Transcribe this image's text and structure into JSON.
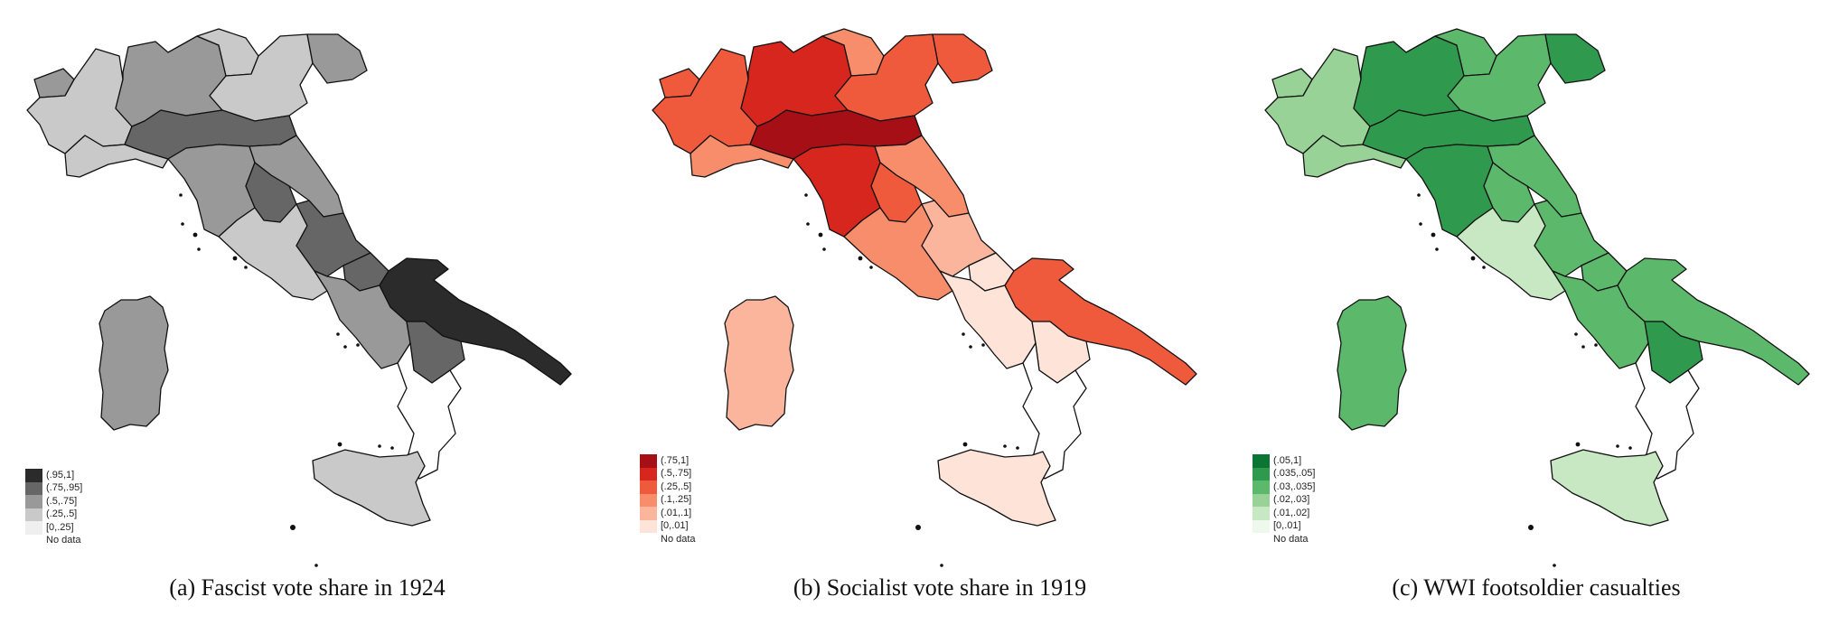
{
  "figure": {
    "panels": [
      {
        "id": "a",
        "caption": "(a) Fascist vote share in 1924",
        "legend": {
          "bins": [
            {
              "label": "(.95,1]",
              "color": "#2b2b2b"
            },
            {
              "label": "(.75,.95]",
              "color": "#666666"
            },
            {
              "label": "(.5,.75]",
              "color": "#999999"
            },
            {
              "label": "(.25,.5]",
              "color": "#c9c9c9"
            },
            {
              "label": "[0,.25]",
              "color": "#efefef"
            }
          ],
          "no_data_label": "No data"
        },
        "region_fill_index_estimated": {
          "piemonte": 3,
          "valdaosta": 2,
          "lombardia": 2,
          "trentino": 3,
          "veneto": 3,
          "friuli": 2,
          "liguria": 3,
          "emilia": 1,
          "toscana": 2,
          "marche": 2,
          "umbria": 1,
          "lazio": 3,
          "abruzzo": 1,
          "molise": 1,
          "campania": 2,
          "puglia": 0,
          "basilicata": 1,
          "calabria": null,
          "sicilia": 3,
          "sardegna": 2
        }
      },
      {
        "id": "b",
        "caption": "(b) Socialist vote share in 1919",
        "legend": {
          "bins": [
            {
              "label": "(.75,1]",
              "color": "#a50f15"
            },
            {
              "label": "(.5,.75]",
              "color": "#d7261e"
            },
            {
              "label": "(.25,.5]",
              "color": "#f05a3c"
            },
            {
              "label": "(.1,.25]",
              "color": "#f88d6b"
            },
            {
              "label": "(.01,.1]",
              "color": "#fbb59c"
            },
            {
              "label": "[0,.01]",
              "color": "#fde3d8"
            }
          ],
          "no_data_label": "No data"
        },
        "region_fill_index_estimated": {
          "piemonte": 2,
          "valdaosta": 2,
          "lombardia": 1,
          "trentino": 3,
          "veneto": 2,
          "friuli": 2,
          "liguria": 3,
          "emilia": 0,
          "toscana": 1,
          "marche": 3,
          "umbria": 2,
          "lazio": 3,
          "abruzzo": 4,
          "molise": 5,
          "campania": 5,
          "puglia": 2,
          "basilicata": 5,
          "calabria": null,
          "sicilia": 5,
          "sardegna": 4
        }
      },
      {
        "id": "c",
        "caption": "(c) WWI footsoldier casualties",
        "legend": {
          "bins": [
            {
              "label": "(.05,1]",
              "color": "#0b7634"
            },
            {
              "label": "(.035,.05]",
              "color": "#2f9a4d"
            },
            {
              "label": "(.03,.035]",
              "color": "#5cb86a"
            },
            {
              "label": "(.02,.03]",
              "color": "#98d296"
            },
            {
              "label": "(.01,.02]",
              "color": "#c7e8c2"
            },
            {
              "label": "[0,.01]",
              "color": "#eef8ec"
            }
          ],
          "no_data_label": "No data"
        },
        "region_fill_index_estimated": {
          "piemonte": 3,
          "valdaosta": 3,
          "lombardia": 1,
          "trentino": 2,
          "veneto": 2,
          "friuli": 1,
          "liguria": 3,
          "emilia": 1,
          "toscana": 1,
          "marche": 2,
          "umbria": 2,
          "lazio": 4,
          "abruzzo": 2,
          "molise": 2,
          "campania": 2,
          "puglia": 2,
          "basilicata": 1,
          "calabria": null,
          "sicilia": 4,
          "sardegna": 2
        }
      }
    ],
    "shared": {
      "no_data_color": "#ffffff",
      "border_color": "#111111"
    }
  }
}
